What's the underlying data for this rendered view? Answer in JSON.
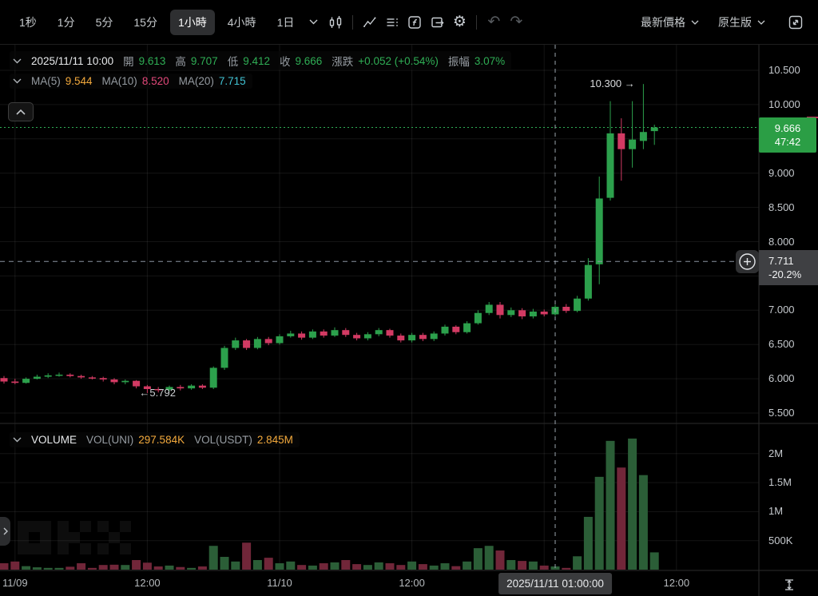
{
  "toolbar": {
    "intervals": [
      {
        "label": "1秒",
        "active": false
      },
      {
        "label": "1分",
        "active": false
      },
      {
        "label": "5分",
        "active": false
      },
      {
        "label": "15分",
        "active": false
      },
      {
        "label": "1小時",
        "active": true
      },
      {
        "label": "4小時",
        "active": false
      },
      {
        "label": "1日",
        "active": false,
        "dropdown": true
      }
    ],
    "right": {
      "price_mode_label": "最新價格",
      "version_label": "原生版"
    }
  },
  "legend": {
    "ohlc": {
      "date": "2025/11/11 10:00",
      "fields": [
        {
          "label": "開",
          "value": "9.613"
        },
        {
          "label": "高",
          "value": "9.707"
        },
        {
          "label": "低",
          "value": "9.412"
        },
        {
          "label": "收",
          "value": "9.666"
        },
        {
          "label": "漲跌",
          "value": "+0.052 (+0.54%)"
        },
        {
          "label": "振幅",
          "value": "3.07%"
        }
      ]
    },
    "ma": {
      "fields": [
        {
          "label": "MA(5)",
          "value": "9.544",
          "color": "#f2a93c"
        },
        {
          "label": "MA(10)",
          "value": "8.520",
          "color": "#e2487a"
        },
        {
          "label": "MA(20)",
          "value": "7.715",
          "color": "#41c3d4"
        }
      ]
    },
    "volume": {
      "title": "VOLUME",
      "fields": [
        {
          "label": "VOL(UNI)",
          "value": "297.584K",
          "color": "#f2a93c"
        },
        {
          "label": "VOL(USDT)",
          "value": "2.845M",
          "color": "#f2a93c"
        }
      ]
    }
  },
  "axis": {
    "price_ticks": [
      {
        "p": 10.5,
        "label": "10.500"
      },
      {
        "p": 10.0,
        "label": "10.000"
      },
      {
        "p": 9.5,
        "label": ""
      },
      {
        "p": 9.0,
        "label": "9.000"
      },
      {
        "p": 8.5,
        "label": "8.500"
      },
      {
        "p": 8.0,
        "label": "8.000"
      },
      {
        "p": 7.5,
        "label": ""
      },
      {
        "p": 7.0,
        "label": "7.000"
      },
      {
        "p": 6.5,
        "label": "6.500"
      },
      {
        "p": 6.0,
        "label": "6.000"
      },
      {
        "p": 5.5,
        "label": "5.500"
      }
    ],
    "volume_ticks": [
      {
        "v": 2000,
        "label": "2M"
      },
      {
        "v": 1500,
        "label": "1.5M"
      },
      {
        "v": 1000,
        "label": "1M"
      },
      {
        "v": 500,
        "label": "500K"
      }
    ],
    "time_ticks": [
      {
        "n": 1,
        "label": "11/09"
      },
      {
        "n": 13,
        "label": "12:00"
      },
      {
        "n": 25,
        "label": "11/10"
      },
      {
        "n": 37,
        "label": "12:00"
      },
      {
        "n": 49,
        "label": ""
      },
      {
        "n": 61,
        "label": "12:00"
      }
    ]
  },
  "markers": {
    "high": {
      "text": "10.300",
      "price": 10.3,
      "candle_index": 58
    },
    "low": {
      "text": "5.792",
      "price": 5.792,
      "candle_index": 13
    },
    "last_price": {
      "text": "9.666",
      "countdown": "47:42",
      "price": 9.666
    },
    "ref_price": {
      "text": "7.711",
      "pct": "-20.2%",
      "price": 7.711
    },
    "crosshair": {
      "time_label": "2025/11/11 01:00:00",
      "candle_index": 50
    }
  },
  "icons": {
    "gear": "⚙",
    "undo": "↶",
    "redo": "↷",
    "arrow_right": "→",
    "arrow_left": "←"
  },
  "colors": {
    "up": "#2ca04c",
    "down": "#d23a63",
    "vol_up": "#2b5e37",
    "vol_down": "#712639",
    "last_badge": "#2b9e45",
    "ref_badge": "#3f4043",
    "dotted_line": "#2fae55",
    "crosshair": "#9aa3ad",
    "ref_line": "#8b93a0",
    "grid": "rgba(255,255,255,0.08)"
  },
  "chart_data": {
    "type": "candlestick_with_volume",
    "interval": "1H",
    "volume_unit": "UNI",
    "columns": [
      "time",
      "open",
      "high",
      "low",
      "close",
      "volume_K"
    ],
    "y_axis_visible_range": [
      5.4,
      10.88
    ],
    "volume_axis_max_K": 2600,
    "candles": [
      [
        "11/08 23:00",
        6.01,
        6.04,
        5.93,
        5.96,
        110
      ],
      [
        "11/09 00:00",
        5.96,
        6.0,
        5.92,
        5.94,
        140
      ],
      [
        "11/09 01:00",
        5.94,
        6.02,
        5.93,
        6.0,
        60
      ],
      [
        "11/09 02:00",
        6.0,
        6.06,
        5.99,
        6.03,
        40
      ],
      [
        "11/09 03:00",
        6.03,
        6.08,
        6.01,
        6.05,
        30
      ],
      [
        "11/09 04:00",
        6.05,
        6.09,
        6.03,
        6.06,
        30
      ],
      [
        "11/09 05:00",
        6.06,
        6.08,
        6.02,
        6.04,
        50
      ],
      [
        "11/09 06:00",
        6.04,
        6.06,
        6.0,
        6.02,
        110
      ],
      [
        "11/09 07:00",
        6.02,
        6.04,
        5.99,
        6.01,
        30
      ],
      [
        "11/09 08:00",
        6.01,
        6.03,
        5.96,
        5.99,
        80
      ],
      [
        "11/09 09:00",
        5.99,
        6.01,
        5.92,
        5.95,
        85
      ],
      [
        "11/09 10:00",
        5.95,
        5.99,
        5.92,
        5.97,
        80
      ],
      [
        "11/09 11:00",
        5.97,
        5.98,
        5.86,
        5.89,
        165
      ],
      [
        "11/09 12:00",
        5.89,
        5.91,
        5.792,
        5.85,
        120
      ],
      [
        "11/09 13:00",
        5.85,
        5.88,
        5.8,
        5.84,
        55
      ],
      [
        "11/09 14:00",
        5.84,
        5.9,
        5.82,
        5.88,
        70
      ],
      [
        "11/09 15:00",
        5.88,
        5.91,
        5.83,
        5.86,
        45
      ],
      [
        "11/09 16:00",
        5.86,
        5.92,
        5.84,
        5.9,
        30
      ],
      [
        "11/09 17:00",
        5.9,
        5.92,
        5.85,
        5.87,
        55
      ],
      [
        "11/09 18:00",
        5.87,
        6.18,
        5.85,
        6.16,
        410
      ],
      [
        "11/09 19:00",
        6.16,
        6.48,
        6.13,
        6.45,
        220
      ],
      [
        "11/09 20:00",
        6.45,
        6.6,
        6.42,
        6.56,
        140
      ],
      [
        "11/09 21:00",
        6.56,
        6.58,
        6.42,
        6.45,
        465
      ],
      [
        "11/09 22:00",
        6.45,
        6.61,
        6.43,
        6.58,
        165
      ],
      [
        "11/09 23:00",
        6.58,
        6.61,
        6.49,
        6.52,
        205
      ],
      [
        "11/10 00:00",
        6.52,
        6.65,
        6.5,
        6.62,
        110
      ],
      [
        "11/10 01:00",
        6.62,
        6.7,
        6.6,
        6.66,
        140
      ],
      [
        "11/10 02:00",
        6.66,
        6.69,
        6.57,
        6.6,
        80
      ],
      [
        "11/10 03:00",
        6.6,
        6.72,
        6.58,
        6.69,
        70
      ],
      [
        "11/10 04:00",
        6.69,
        6.72,
        6.6,
        6.63,
        110
      ],
      [
        "11/10 05:00",
        6.63,
        6.75,
        6.61,
        6.71,
        125
      ],
      [
        "11/10 06:00",
        6.71,
        6.74,
        6.61,
        6.64,
        165
      ],
      [
        "11/10 07:00",
        6.64,
        6.67,
        6.56,
        6.59,
        95
      ],
      [
        "11/10 08:00",
        6.59,
        6.68,
        6.56,
        6.65,
        80
      ],
      [
        "11/10 09:00",
        6.65,
        6.74,
        6.62,
        6.71,
        125
      ],
      [
        "11/10 10:00",
        6.71,
        6.73,
        6.6,
        6.63,
        110
      ],
      [
        "11/10 11:00",
        6.63,
        6.66,
        6.53,
        6.56,
        80
      ],
      [
        "11/10 12:00",
        6.56,
        6.67,
        6.53,
        6.64,
        140
      ],
      [
        "11/10 13:00",
        6.64,
        6.67,
        6.55,
        6.58,
        95
      ],
      [
        "11/10 14:00",
        6.58,
        6.69,
        6.55,
        6.66,
        70
      ],
      [
        "11/10 15:00",
        6.66,
        6.79,
        6.63,
        6.76,
        110
      ],
      [
        "11/10 16:00",
        6.76,
        6.78,
        6.65,
        6.68,
        60
      ],
      [
        "11/10 17:00",
        6.68,
        6.84,
        6.66,
        6.81,
        140
      ],
      [
        "11/10 18:00",
        6.81,
        7.0,
        6.79,
        6.96,
        370
      ],
      [
        "11/10 19:00",
        6.96,
        7.12,
        6.93,
        7.08,
        410
      ],
      [
        "11/10 20:00",
        7.08,
        7.12,
        6.88,
        6.93,
        330
      ],
      [
        "11/10 21:00",
        6.93,
        7.04,
        6.9,
        7.0,
        165
      ],
      [
        "11/10 22:00",
        7.0,
        7.03,
        6.87,
        6.91,
        150
      ],
      [
        "11/10 23:00",
        6.91,
        7.02,
        6.88,
        6.98,
        140
      ],
      [
        "11/11 00:00",
        6.98,
        7.01,
        6.91,
        6.94,
        70
      ],
      [
        "11/11 01:00",
        6.94,
        7.08,
        6.92,
        7.05,
        55
      ],
      [
        "11/11 02:00",
        7.05,
        7.09,
        6.96,
        6.99,
        30
      ],
      [
        "11/11 03:00",
        6.99,
        7.21,
        6.97,
        7.17,
        230
      ],
      [
        "11/11 04:00",
        7.17,
        7.76,
        7.14,
        7.66,
        910
      ],
      [
        "11/11 05:00",
        7.67,
        8.95,
        7.38,
        8.63,
        1600
      ],
      [
        "11/11 06:00",
        8.64,
        10.05,
        8.6,
        9.58,
        2220
      ],
      [
        "11/11 07:00",
        9.58,
        9.8,
        8.89,
        9.35,
        1760
      ],
      [
        "11/11 08:00",
        9.35,
        10.05,
        9.08,
        9.49,
        2260
      ],
      [
        "11/11 09:00",
        9.47,
        10.3,
        9.35,
        9.6,
        1630
      ],
      [
        "11/11 10:00",
        9.613,
        9.707,
        9.412,
        9.666,
        297.584
      ]
    ]
  }
}
